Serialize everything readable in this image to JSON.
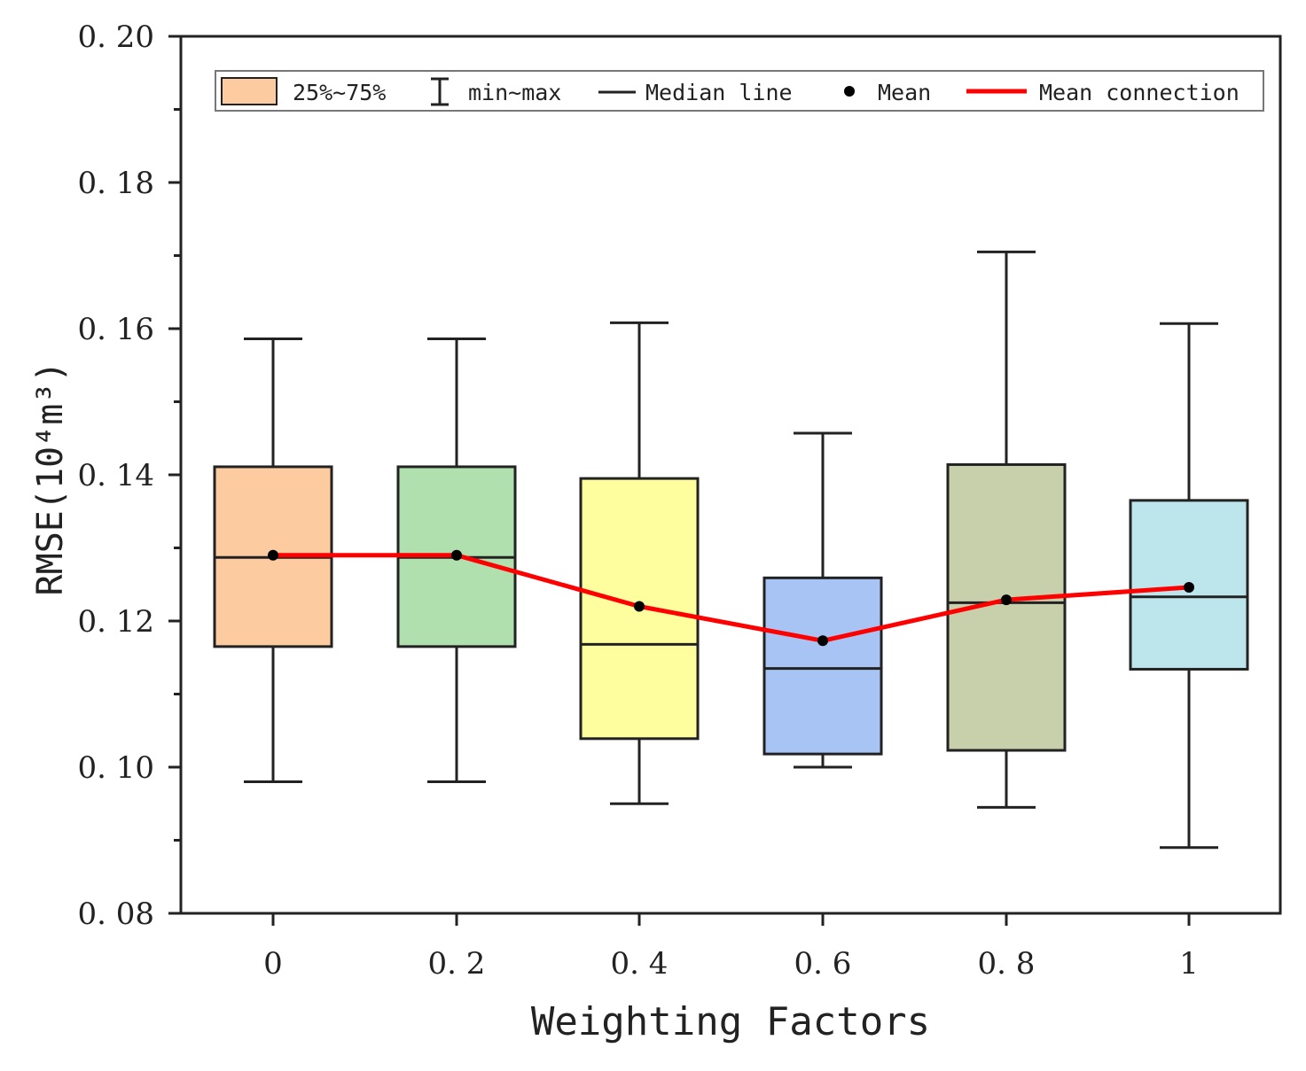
{
  "chart_data": {
    "type": "box",
    "title": "",
    "xlabel": "Weighting Factors",
    "ylabel": "RMSE",
    "ylabel_unit": "(10⁴m³)",
    "ylim": [
      0.08,
      0.2
    ],
    "yticks": [
      "0.08",
      "0.10",
      "0.12",
      "0.14",
      "0.16",
      "0.18",
      "0.20"
    ],
    "categories": [
      "0",
      "0.2",
      "0.4",
      "0.6",
      "0.8",
      "1"
    ],
    "boxes": [
      {
        "category": "0",
        "min": 0.098,
        "q1": 0.1165,
        "median": 0.1287,
        "q3": 0.1411,
        "max": 0.1586,
        "mean": 0.129,
        "color": "#FDCBA0"
      },
      {
        "category": "0.2",
        "min": 0.098,
        "q1": 0.1165,
        "median": 0.1287,
        "q3": 0.1411,
        "max": 0.1586,
        "mean": 0.129,
        "color": "#B0E0AE"
      },
      {
        "category": "0.4",
        "min": 0.095,
        "q1": 0.1039,
        "median": 0.1168,
        "q3": 0.1395,
        "max": 0.1608,
        "mean": 0.122,
        "color": "#FFFE9E"
      },
      {
        "category": "0.6",
        "min": 0.1,
        "q1": 0.1018,
        "median": 0.1135,
        "q3": 0.1259,
        "max": 0.1457,
        "mean": 0.1173,
        "color": "#A8C4F4"
      },
      {
        "category": "0.8",
        "min": 0.0945,
        "q1": 0.1023,
        "median": 0.1225,
        "q3": 0.1414,
        "max": 0.1705,
        "mean": 0.1229,
        "color": "#C8CFAB"
      },
      {
        "category": "1",
        "min": 0.089,
        "q1": 0.1134,
        "median": 0.1233,
        "q3": 0.1365,
        "max": 0.1607,
        "mean": 0.1246,
        "color": "#BDE6EC"
      }
    ],
    "mean_line_color": "#FF0000",
    "legend": {
      "position": "top",
      "items": [
        {
          "key": "box",
          "label": "25%~75%"
        },
        {
          "key": "whisker",
          "label": "min~max"
        },
        {
          "key": "median",
          "label": "Median line"
        },
        {
          "key": "mean",
          "label": "Mean"
        },
        {
          "key": "connect",
          "label": "Mean connection"
        }
      ]
    }
  }
}
